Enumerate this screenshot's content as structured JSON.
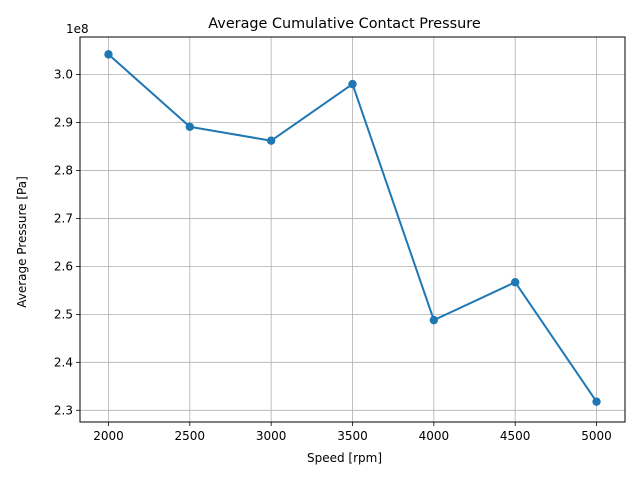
{
  "chart_data": {
    "type": "line",
    "title": "Average Cumulative Contact Pressure",
    "xlabel": "Speed [rpm]",
    "ylabel": "Average Pressure [Pa]",
    "y_offset_label": "1e8",
    "x": [
      2000,
      2500,
      3000,
      3500,
      4000,
      4500,
      5000
    ],
    "series": [
      {
        "values": [
          304200000.0,
          289100000.0,
          286200000.0,
          298000000.0,
          248800000.0,
          256700000.0,
          231800000.0
        ]
      }
    ],
    "x_ticks": [
      2000,
      2500,
      3000,
      3500,
      4000,
      4500,
      5000
    ],
    "x_tick_labels": [
      "2000",
      "2500",
      "3000",
      "3500",
      "4000",
      "4500",
      "5000"
    ],
    "y_ticks": [
      2.3,
      2.4,
      2.5,
      2.6,
      2.7,
      2.8,
      2.9,
      3.0
    ],
    "y_tick_labels": [
      "2.3",
      "2.4",
      "2.5",
      "2.6",
      "2.7",
      "2.8",
      "2.9",
      "3.0"
    ],
    "xlim": [
      1825,
      5175
    ],
    "ylim": [
      2.2756,
      3.0782
    ],
    "grid": true,
    "color": "#1f77b4"
  }
}
